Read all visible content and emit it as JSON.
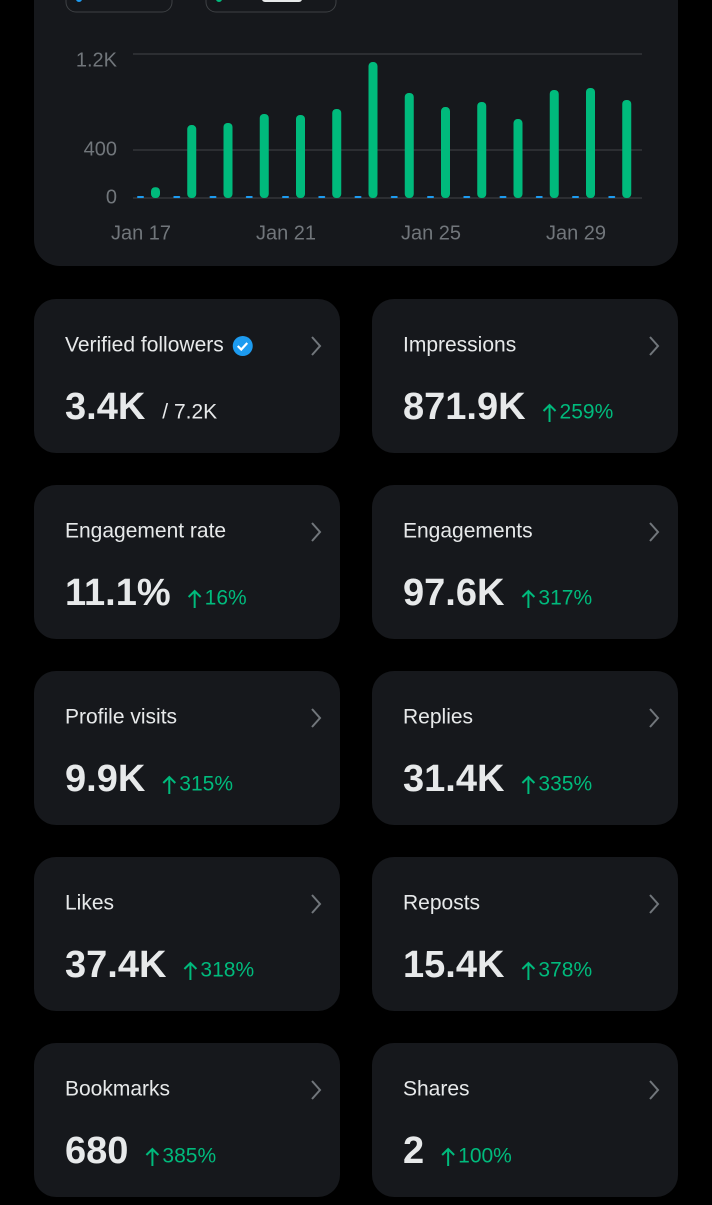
{
  "chart_data": {
    "type": "bar",
    "categories": [
      "Jan 17",
      null,
      null,
      null,
      "Jan 21",
      null,
      null,
      null,
      "Jan 25",
      null,
      null,
      null,
      "Jan 29",
      null
    ],
    "series": [
      {
        "color": "#1d9bf0",
        "values": [
          10,
          10,
          10,
          10,
          10,
          10,
          10,
          10,
          10,
          10,
          10,
          10,
          10,
          10
        ]
      },
      {
        "color": "#00ba7c",
        "values": [
          90,
          608,
          625,
          700,
          692,
          742,
          1133,
          875,
          758,
          800,
          658,
          900,
          917,
          817
        ]
      }
    ],
    "ylim": [
      0,
      1200
    ],
    "yticks": [
      0,
      400,
      {
        "value": 1200,
        "label": "1.2K"
      }
    ],
    "grid": true
  },
  "cards": [
    {
      "title": "Verified followers",
      "value": "3.4K",
      "total": "/ 7.2K"
    },
    {
      "title": "Impressions",
      "value": "871.9K",
      "change": "259%"
    },
    {
      "title": "Engagement rate",
      "value": "11.1%",
      "change": "16%"
    },
    {
      "title": "Engagements",
      "value": "97.6K",
      "change": "317%"
    },
    {
      "title": "Profile visits",
      "value": "9.9K",
      "change": "315%"
    },
    {
      "title": "Replies",
      "value": "31.4K",
      "change": "335%"
    },
    {
      "title": "Likes",
      "value": "37.4K",
      "change": "318%"
    },
    {
      "title": "Reposts",
      "value": "15.4K",
      "change": "378%"
    },
    {
      "title": "Bookmarks",
      "value": "680",
      "change": "385%"
    },
    {
      "title": "Shares",
      "value": "2",
      "change": "100%"
    }
  ]
}
